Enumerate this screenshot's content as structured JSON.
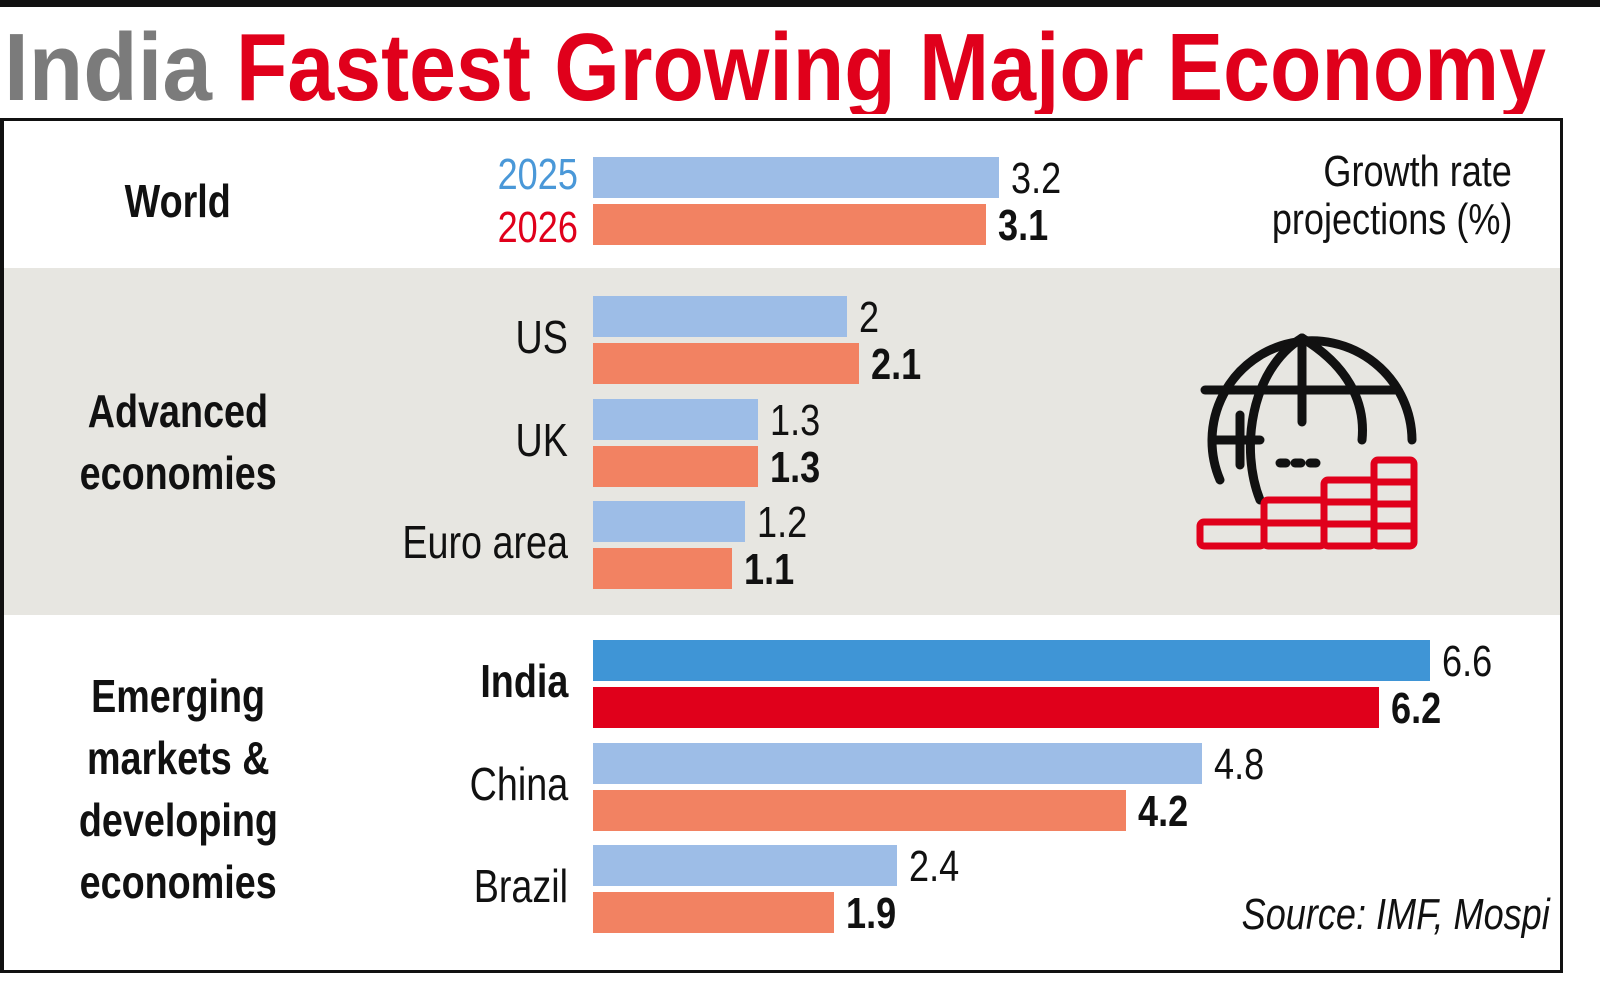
{
  "title": {
    "part1": "India",
    "part2": "Fastest Growing Major Economy",
    "color1": "#7b7b7b",
    "color2": "#e0001b"
  },
  "legend": {
    "y2025": "2025",
    "y2026": "2026",
    "color2025": "#4a98d8",
    "color2026": "#e0001b"
  },
  "note": {
    "line1": "Growth rate",
    "line2": "projections (%)"
  },
  "source": "Source: IMF, Mospi",
  "icon": "globe-with-coins-icon",
  "groups": {
    "world": "World",
    "advanced": [
      "Advanced",
      "economies"
    ],
    "emerging": [
      "Emerging",
      "markets &",
      "developing",
      "economies"
    ]
  },
  "chart_data": {
    "type": "bar",
    "orientation": "horizontal",
    "categories": [
      "World",
      "US",
      "UK",
      "Euro area",
      "India",
      "China",
      "Brazil"
    ],
    "series": [
      {
        "name": "2025",
        "values": [
          3.2,
          2,
          1.3,
          1.2,
          6.6,
          4.8,
          2.4
        ],
        "labels": [
          "3.2",
          "2",
          "1.3",
          "1.2",
          "6.6",
          "4.8",
          "2.4"
        ]
      },
      {
        "name": "2026",
        "values": [
          3.1,
          2.1,
          1.3,
          1.1,
          6.2,
          4.2,
          1.9
        ],
        "labels": [
          "3.1",
          "2.1",
          "1.3",
          "1.1",
          "6.2",
          "4.2",
          "1.9"
        ]
      }
    ],
    "colors": {
      "2025": "#9dbde7",
      "2026": "#f28262",
      "highlight_2025": "#3f95d6",
      "highlight_2026": "#e0001b"
    },
    "highlight": "India",
    "xlim": [
      0,
      6.6
    ]
  }
}
